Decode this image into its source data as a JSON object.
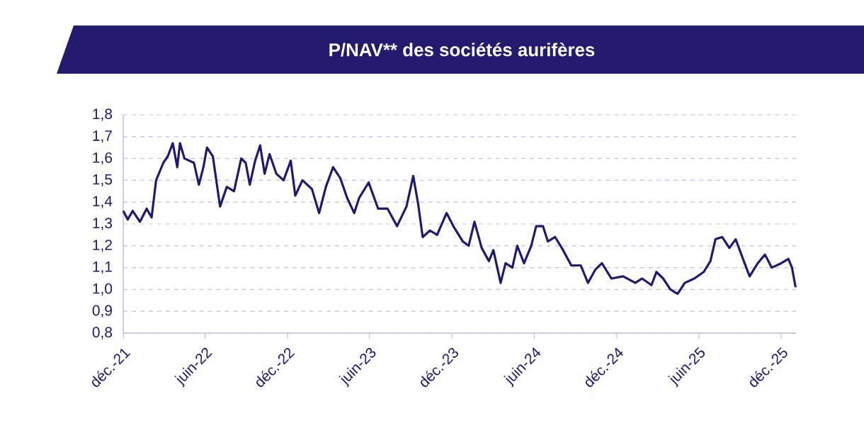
{
  "chart_data": {
    "type": "line",
    "title": "P/NAV** des sociétés aurifères",
    "series": [
      {
        "color": "#201a6f",
        "x": [
          "2021-12-01",
          "2021-12-11",
          "2021-12-22",
          "2022-01-07",
          "2022-01-22",
          "2022-02-02",
          "2022-02-12",
          "2022-02-28",
          "2022-03-10",
          "2022-03-21",
          "2022-03-31",
          "2022-04-06",
          "2022-04-16",
          "2022-05-07",
          "2022-05-18",
          "2022-05-28",
          "2022-06-05",
          "2022-06-18",
          "2022-07-04",
          "2022-07-19",
          "2022-08-04",
          "2022-08-20",
          "2022-08-30",
          "2022-09-08",
          "2022-09-20",
          "2022-10-01",
          "2022-10-11",
          "2022-10-22",
          "2022-11-06",
          "2022-11-22",
          "2022-12-08",
          "2022-12-18",
          "2023-01-03",
          "2023-01-24",
          "2023-02-09",
          "2023-02-24",
          "2023-03-12",
          "2023-03-28",
          "2023-04-12",
          "2023-04-28",
          "2023-05-09",
          "2023-05-30",
          "2023-06-20",
          "2023-07-11",
          "2023-08-01",
          "2023-08-22",
          "2023-09-06",
          "2023-09-17",
          "2023-09-27",
          "2023-10-13",
          "2023-10-29",
          "2023-11-19",
          "2023-12-04",
          "2023-12-25",
          "2024-01-07",
          "2024-01-20",
          "2024-02-05",
          "2024-02-21",
          "2024-03-02",
          "2024-03-18",
          "2024-03-29",
          "2024-04-13",
          "2024-04-24",
          "2024-05-09",
          "2024-05-25",
          "2024-06-05",
          "2024-06-20",
          "2024-07-01",
          "2024-07-17",
          "2024-08-01",
          "2024-08-22",
          "2024-09-12",
          "2024-09-28",
          "2024-10-14",
          "2024-10-29",
          "2024-11-19",
          "2024-12-15",
          "2025-01-11",
          "2025-01-26",
          "2025-02-16",
          "2025-02-27",
          "2025-03-14",
          "2025-03-30",
          "2025-04-15",
          "2025-05-01",
          "2025-05-22",
          "2025-06-12",
          "2025-06-27",
          "2025-07-08",
          "2025-07-23",
          "2025-08-08",
          "2025-08-22",
          "2025-09-09",
          "2025-09-22",
          "2025-10-10",
          "2025-10-26",
          "2025-11-10",
          "2025-12-01",
          "2025-12-17",
          "2025-12-25",
          "2026-01-02"
        ],
        "values": [
          1.36,
          1.32,
          1.36,
          1.31,
          1.37,
          1.33,
          1.5,
          1.58,
          1.61,
          1.67,
          1.56,
          1.67,
          1.6,
          1.58,
          1.48,
          1.56,
          1.65,
          1.61,
          1.38,
          1.47,
          1.45,
          1.6,
          1.58,
          1.48,
          1.59,
          1.66,
          1.53,
          1.62,
          1.53,
          1.5,
          1.59,
          1.43,
          1.5,
          1.46,
          1.35,
          1.47,
          1.56,
          1.51,
          1.42,
          1.35,
          1.42,
          1.49,
          1.37,
          1.37,
          1.29,
          1.38,
          1.52,
          1.39,
          1.24,
          1.27,
          1.25,
          1.35,
          1.29,
          1.22,
          1.2,
          1.31,
          1.19,
          1.13,
          1.18,
          1.03,
          1.12,
          1.1,
          1.2,
          1.12,
          1.2,
          1.29,
          1.29,
          1.22,
          1.24,
          1.19,
          1.11,
          1.11,
          1.03,
          1.09,
          1.12,
          1.05,
          1.06,
          1.03,
          1.05,
          1.02,
          1.08,
          1.05,
          1.0,
          0.98,
          1.03,
          1.05,
          1.08,
          1.13,
          1.23,
          1.24,
          1.19,
          1.23,
          1.13,
          1.06,
          1.12,
          1.16,
          1.1,
          1.12,
          1.14,
          1.1,
          1.01
        ]
      }
    ],
    "xlim": [
      "2021-12-01",
      "2026-01-03"
    ],
    "xticks": [
      {
        "value": "2021-12-01",
        "label": "déc.-21"
      },
      {
        "value": "2022-06-01",
        "label": "juin-22"
      },
      {
        "value": "2022-12-01",
        "label": "déc.-22"
      },
      {
        "value": "2023-06-01",
        "label": "juin-23"
      },
      {
        "value": "2023-12-01",
        "label": "déc.-23"
      },
      {
        "value": "2024-06-01",
        "label": "juin-24"
      },
      {
        "value": "2024-12-01",
        "label": "déc.-24"
      },
      {
        "value": "2025-06-01",
        "label": "juin-25"
      },
      {
        "value": "2025-12-01",
        "label": "déc.-25"
      }
    ],
    "ylim": [
      0.8,
      1.8
    ],
    "yticks": [
      {
        "value": 0.8,
        "label": "0,8"
      },
      {
        "value": 0.9,
        "label": "0,9"
      },
      {
        "value": 1.0,
        "label": "1,0"
      },
      {
        "value": 1.1,
        "label": "1,1"
      },
      {
        "value": 1.2,
        "label": "1,2"
      },
      {
        "value": 1.3,
        "label": "1,3"
      },
      {
        "value": 1.4,
        "label": "1,4"
      },
      {
        "value": 1.5,
        "label": "1,5"
      },
      {
        "value": 1.6,
        "label": "1,6"
      },
      {
        "value": 1.7,
        "label": "1,7"
      },
      {
        "value": 1.8,
        "label": "1,8"
      }
    ],
    "grid": "y",
    "legend": false,
    "marker": "none",
    "line_style": "solid"
  }
}
